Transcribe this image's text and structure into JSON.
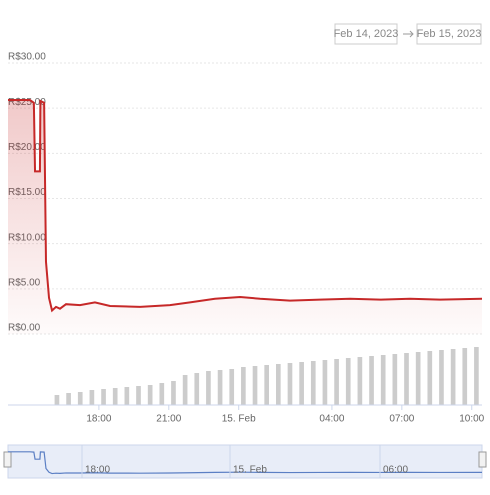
{
  "range": {
    "from": "Feb 14, 2023",
    "to": "Feb 15, 2023"
  },
  "navigator": {
    "labels": [
      "18:00",
      "15. Feb",
      "06:00"
    ]
  },
  "chart_data": [
    {
      "type": "line",
      "color": "#c62828",
      "x": [
        14.1,
        15.04,
        15.21,
        15.26,
        15.47,
        15.49,
        15.65,
        15.73,
        15.86,
        15.99,
        16.16,
        16.33,
        16.59,
        17.19,
        17.83,
        18.48,
        19.77,
        21.05,
        21.91,
        22.98,
        24.06,
        24.92,
        26.2,
        27.49,
        28.78,
        30.07,
        31.35,
        32.64,
        34.44
      ],
      "values": [
        25.9,
        25.9,
        25.6,
        18,
        18,
        25.8,
        25.6,
        8,
        4,
        2.6,
        3.0,
        2.8,
        3.3,
        3.2,
        3.5,
        3.1,
        3.0,
        3.2,
        3.5,
        3.9,
        4.1,
        3.9,
        3.7,
        3.8,
        3.9,
        3.8,
        3.9,
        3.8,
        3.9
      ],
      "xlim": [
        14.1,
        34.44
      ],
      "xticks": [
        {
          "value": 18,
          "label": "18:00"
        },
        {
          "value": 21,
          "label": "21:00"
        },
        {
          "value": 24,
          "label": "15. Feb"
        },
        {
          "value": 28,
          "label": "04:00"
        },
        {
          "value": 31,
          "label": "07:00"
        },
        {
          "value": 34,
          "label": "10:00"
        }
      ],
      "ylim": [
        0,
        30
      ],
      "yticks": [
        {
          "value": 0,
          "label": "R$0.00"
        },
        {
          "value": 5,
          "label": "R$5.00"
        },
        {
          "value": 10,
          "label": "R$10.00"
        },
        {
          "value": 15,
          "label": "R$15.00"
        },
        {
          "value": 20,
          "label": "R$20.00"
        },
        {
          "value": 25,
          "label": "R$25.00"
        },
        {
          "value": 30,
          "label": "R$30.00"
        }
      ],
      "grid": true
    },
    {
      "type": "bar",
      "color": "#cccccc",
      "ylim": [
        0,
        60
      ],
      "x": [
        16.2,
        16.7,
        17.2,
        17.7,
        18.2,
        18.7,
        19.2,
        19.7,
        20.2,
        20.7,
        21.2,
        21.7,
        22.2,
        22.7,
        23.2,
        23.7,
        24.2,
        24.7,
        25.2,
        25.7,
        26.2,
        26.7,
        27.2,
        27.7,
        28.2,
        28.7,
        29.2,
        29.7,
        30.2,
        30.7,
        31.2,
        31.7,
        32.2,
        32.7,
        33.2,
        33.7,
        34.2
      ],
      "values": [
        10,
        12,
        13,
        15,
        16,
        17,
        18,
        19,
        20,
        22,
        24,
        30,
        32,
        34,
        35,
        36,
        38,
        39,
        40,
        41,
        42,
        43,
        44,
        45,
        46,
        47,
        48,
        49,
        50,
        51,
        52,
        53,
        54,
        55,
        56,
        57,
        58
      ]
    }
  ]
}
